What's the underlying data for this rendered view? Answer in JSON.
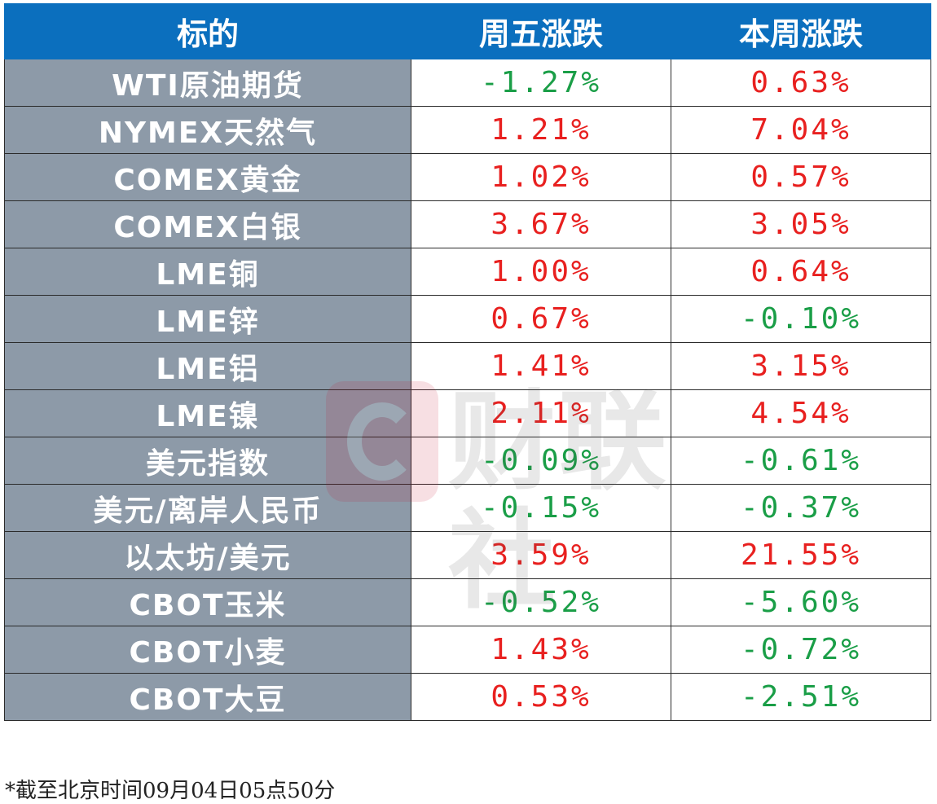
{
  "table": {
    "headers": [
      "标的",
      "周五涨跌",
      "本周涨跌"
    ],
    "rows": [
      {
        "name": "WTI原油期货",
        "fri": "-1.27%",
        "week": "0.63%",
        "fri_dir": "down",
        "week_dir": "up"
      },
      {
        "name": "NYMEX天然气",
        "fri": "1.21%",
        "week": "7.04%",
        "fri_dir": "up",
        "week_dir": "up"
      },
      {
        "name": "COMEX黄金",
        "fri": "1.02%",
        "week": "0.57%",
        "fri_dir": "up",
        "week_dir": "up"
      },
      {
        "name": "COMEX白银",
        "fri": "3.67%",
        "week": "3.05%",
        "fri_dir": "up",
        "week_dir": "up"
      },
      {
        "name": "LME铜",
        "fri": "1.00%",
        "week": "0.64%",
        "fri_dir": "up",
        "week_dir": "up"
      },
      {
        "name": "LME锌",
        "fri": "0.67%",
        "week": "-0.10%",
        "fri_dir": "up",
        "week_dir": "down"
      },
      {
        "name": "LME铝",
        "fri": "1.41%",
        "week": "3.15%",
        "fri_dir": "up",
        "week_dir": "up"
      },
      {
        "name": "LME镍",
        "fri": "2.11%",
        "week": "4.54%",
        "fri_dir": "up",
        "week_dir": "up"
      },
      {
        "name": "美元指数",
        "fri": "-0.09%",
        "week": "-0.61%",
        "fri_dir": "down",
        "week_dir": "down"
      },
      {
        "name": "美元/离岸人民币",
        "fri": "-0.15%",
        "week": "-0.37%",
        "fri_dir": "down",
        "week_dir": "down"
      },
      {
        "name": "以太坊/美元",
        "fri": "3.59%",
        "week": "21.55%",
        "fri_dir": "up",
        "week_dir": "up"
      },
      {
        "name": "CBOT玉米",
        "fri": "-0.52%",
        "week": "-5.60%",
        "fri_dir": "down",
        "week_dir": "down"
      },
      {
        "name": "CBOT小麦",
        "fri": "1.43%",
        "week": "-0.72%",
        "fri_dir": "up",
        "week_dir": "down"
      },
      {
        "name": "CBOT大豆",
        "fri": "0.53%",
        "week": "-2.51%",
        "fri_dir": "up",
        "week_dir": "down"
      }
    ]
  },
  "footnote": "*截至北京时间09月04日05点50分",
  "watermark": {
    "text": "财联社",
    "logo_icon": "cls-logo-icon"
  },
  "colors": {
    "header_bg": "#0b6fbe",
    "name_bg": "#8d9aa8",
    "up": "#e8201f",
    "down": "#1a9e47"
  }
}
